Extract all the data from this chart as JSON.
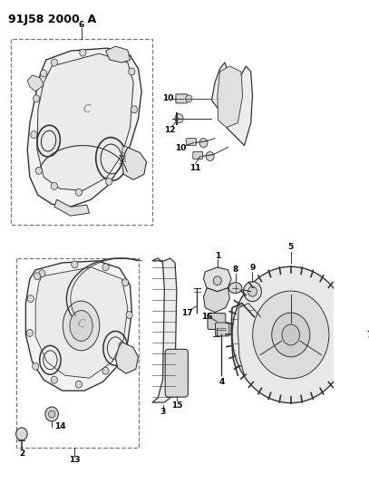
{
  "title": "91J58 2000  A",
  "bg_color": "#ffffff",
  "fig_width": 4.07,
  "fig_height": 5.33,
  "dpi": 100,
  "line_color": "#333333",
  "part_color": "#333333",
  "fill_color": "#f0f0f0",
  "dark_fill": "#d8d8d8",
  "dashed_box_color": "#555555",
  "label_fontsize": 6.5,
  "title_fontsize": 9
}
